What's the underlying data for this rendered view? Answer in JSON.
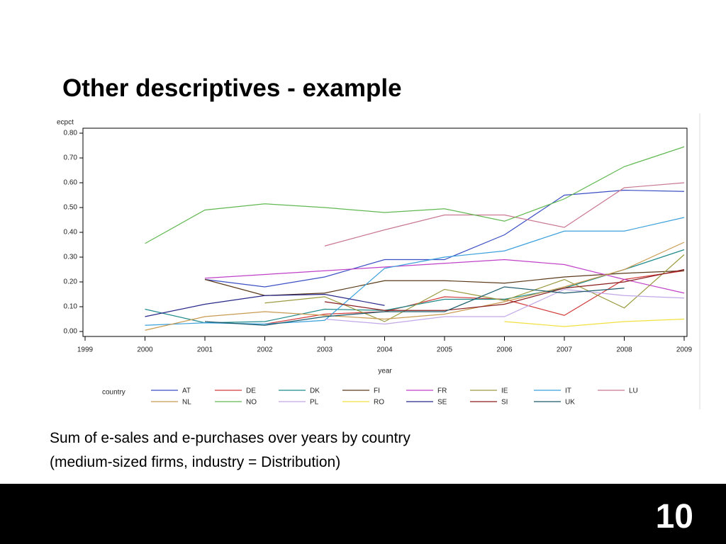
{
  "slide": {
    "title": "Other descriptives - example",
    "caption": [
      "Sum of e-sales and e-purchases over years by country",
      "(medium-sized firms, industry = Distribution)"
    ],
    "page_number": "10"
  },
  "chart_data": {
    "type": "line",
    "y_label": "ecpct",
    "x_label": "year",
    "legend_title": "country",
    "x": [
      2000,
      2001,
      2002,
      2003,
      2004,
      2005,
      2006,
      2007,
      2008,
      2009
    ],
    "xlim": [
      1999,
      2009
    ],
    "xticks": [
      1999,
      2000,
      2001,
      2002,
      2003,
      2004,
      2005,
      2006,
      2007,
      2008,
      2009
    ],
    "ylim": [
      -0.02,
      0.82
    ],
    "yticks": [
      {
        "value": 0,
        "label": "0.00"
      },
      {
        "value": 0.1,
        "label": "0.10"
      },
      {
        "value": 0.2,
        "label": "0.20"
      },
      {
        "value": 0.3,
        "label": "0.30"
      },
      {
        "value": 0.4,
        "label": "0.40"
      },
      {
        "value": 0.5,
        "label": "0.50"
      },
      {
        "value": 0.6,
        "label": "0.60"
      },
      {
        "value": 0.7,
        "label": "0.70"
      },
      {
        "value": 0.8,
        "label": "0.80"
      }
    ],
    "series": [
      {
        "name": "AT",
        "color": "#3b4fc4",
        "values": [
          null,
          0.21,
          0.18,
          0.22,
          0.29,
          0.29,
          0.39,
          0.55,
          0.57,
          0.565
        ]
      },
      {
        "name": "DE",
        "color": "#d23c3c",
        "values": [
          null,
          null,
          0.03,
          0.07,
          0.08,
          0.14,
          0.13,
          0.065,
          0.21,
          0.245
        ]
      },
      {
        "name": "DK",
        "color": "#1e8a8a",
        "values": [
          0.09,
          0.035,
          0.04,
          0.09,
          0.085,
          0.13,
          0.13,
          0.175,
          0.25,
          0.33
        ]
      },
      {
        "name": "FI",
        "color": "#5a3a1a",
        "values": [
          null,
          0.21,
          0.145,
          0.155,
          0.205,
          0.205,
          0.195,
          0.22,
          0.235,
          0.245
        ]
      },
      {
        "name": "FR",
        "color": "#c040c8",
        "values": [
          null,
          0.215,
          0.23,
          0.245,
          0.26,
          0.275,
          0.29,
          0.27,
          0.21,
          0.155
        ]
      },
      {
        "name": "IE",
        "color": "#9a9a40",
        "values": [
          null,
          null,
          0.115,
          0.14,
          0.04,
          0.17,
          0.125,
          0.21,
          0.095,
          0.31
        ]
      },
      {
        "name": "IT",
        "color": "#3aa0dc",
        "values": [
          0.025,
          0.035,
          0.03,
          0.045,
          0.255,
          0.3,
          0.325,
          0.405,
          0.405,
          0.46
        ]
      },
      {
        "name": "LU",
        "color": "#c87890",
        "values": [
          null,
          null,
          null,
          0.345,
          0.41,
          0.47,
          0.47,
          0.42,
          0.58,
          0.6
        ]
      },
      {
        "name": "NL",
        "color": "#c89a50",
        "values": [
          0.005,
          0.06,
          0.08,
          0.065,
          0.05,
          0.07,
          0.12,
          0.18,
          0.25,
          0.36
        ]
      },
      {
        "name": "NO",
        "color": "#60b850",
        "values": [
          0.355,
          0.49,
          0.515,
          0.5,
          0.48,
          0.495,
          0.445,
          0.535,
          0.665,
          0.745
        ]
      },
      {
        "name": "PL",
        "color": "#c0a8e8",
        "values": [
          null,
          null,
          null,
          0.05,
          0.03,
          0.06,
          0.06,
          0.17,
          0.145,
          0.135
        ]
      },
      {
        "name": "RO",
        "color": "#f0e040",
        "values": [
          null,
          null,
          null,
          null,
          null,
          null,
          0.04,
          0.02,
          0.04,
          0.05
        ]
      },
      {
        "name": "SE",
        "color": "#28288a",
        "values": [
          0.06,
          0.11,
          0.145,
          0.15,
          0.105,
          null,
          null,
          null,
          null,
          null
        ]
      },
      {
        "name": "SI",
        "color": "#8a1e1e",
        "values": [
          null,
          null,
          null,
          0.12,
          0.085,
          0.085,
          0.11,
          0.175,
          0.2,
          0.25
        ]
      },
      {
        "name": "UK",
        "color": "#1a5a6a",
        "values": [
          null,
          0.04,
          0.025,
          0.06,
          0.08,
          0.08,
          0.18,
          0.155,
          0.175,
          null
        ]
      }
    ]
  }
}
